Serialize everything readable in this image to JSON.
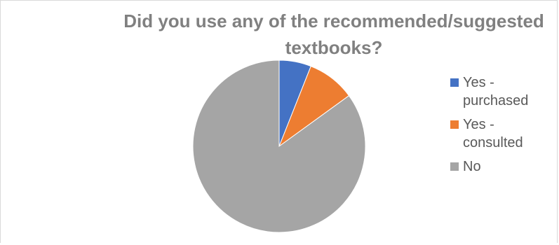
{
  "chart_data": {
    "type": "pie",
    "title": "Did you use any of the recommended/suggested textbooks?",
    "slices": [
      {
        "label": "Yes - purchased",
        "value": 6,
        "color": "#4472C4"
      },
      {
        "label": "Yes - consulted",
        "value": 9,
        "color": "#ED7D31"
      },
      {
        "label": "No",
        "value": 85,
        "color": "#A5A5A5"
      }
    ],
    "legend_position": "right"
  },
  "legend": {
    "items": [
      {
        "label": "Yes -\npurchased",
        "color": "#4472C4"
      },
      {
        "label": "Yes -\nconsulted",
        "color": "#ED7D31"
      },
      {
        "label": "No",
        "color": "#A5A5A5"
      }
    ]
  }
}
